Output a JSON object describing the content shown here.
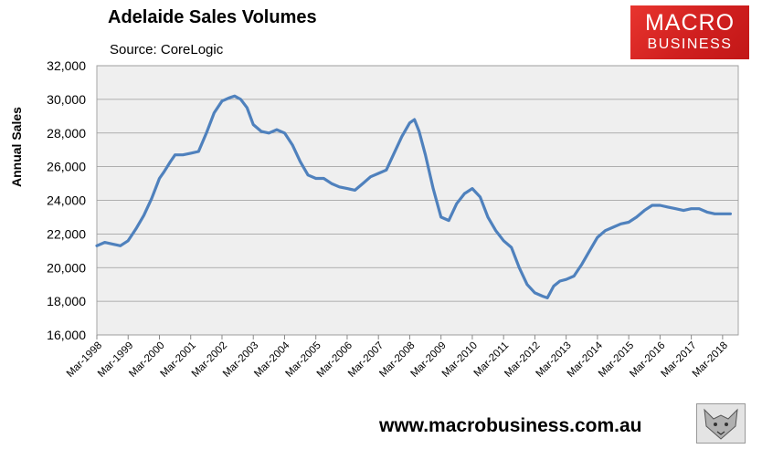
{
  "header": {
    "title": "Adelaide Sales Volumes",
    "source": "Source: CoreLogic"
  },
  "logo": {
    "line1": "MACRO",
    "line2": "BUSINESS",
    "color": "#d9261f"
  },
  "footer": {
    "url": "www.macrobusiness.com.au",
    "logo_icon": "wolf-icon"
  },
  "chart_data": {
    "type": "line",
    "title": "Adelaide Sales Volumes",
    "subtitle": "Source: CoreLogic",
    "xlabel": "",
    "ylabel": "Annual Sales",
    "ylim": [
      16000,
      32000
    ],
    "yticks": [
      16000,
      18000,
      20000,
      22000,
      24000,
      26000,
      28000,
      30000,
      32000
    ],
    "xlim": [
      1998.0,
      2018.5
    ],
    "xtick_labels": [
      "Mar-1998",
      "Mar-1999",
      "Mar-2000",
      "Mar-2001",
      "Mar-2002",
      "Mar-2003",
      "Mar-2004",
      "Mar-2005",
      "Mar-2006",
      "Mar-2007",
      "Mar-2008",
      "Mar-2009",
      "Mar-2010",
      "Mar-2011",
      "Mar-2012",
      "Mar-2013",
      "Mar-2014",
      "Mar-2015",
      "Mar-2016",
      "Mar-2017",
      "Mar-2018"
    ],
    "grid": true,
    "legend": "none",
    "plot_background": "#efefef",
    "line_color": "#4f81bd",
    "series": [
      {
        "x": [
          1998.0,
          1998.25,
          1998.5,
          1998.75,
          1999.0,
          1999.25,
          1999.5,
          1999.75,
          2000.0,
          2000.15,
          2000.35,
          2000.5,
          2000.75,
          2001.0,
          2001.25,
          2001.5,
          2001.75,
          2002.0,
          2002.25,
          2002.4,
          2002.6,
          2002.8,
          2003.0,
          2003.25,
          2003.5,
          2003.75,
          2004.0,
          2004.25,
          2004.5,
          2004.75,
          2005.0,
          2005.25,
          2005.5,
          2005.75,
          2006.0,
          2006.25,
          2006.5,
          2006.75,
          2007.0,
          2007.25,
          2007.5,
          2007.75,
          2008.0,
          2008.15,
          2008.3,
          2008.5,
          2008.75,
          2009.0,
          2009.25,
          2009.5,
          2009.75,
          2010.0,
          2010.25,
          2010.5,
          2010.75,
          2011.0,
          2011.25,
          2011.5,
          2011.75,
          2012.0,
          2012.25,
          2012.4,
          2012.6,
          2012.8,
          2013.0,
          2013.25,
          2013.5,
          2013.75,
          2014.0,
          2014.25,
          2014.5,
          2014.75,
          2015.0,
          2015.25,
          2015.5,
          2015.75,
          2016.0,
          2016.25,
          2016.5,
          2016.75,
          2017.0,
          2017.25,
          2017.5,
          2017.75,
          2018.0,
          2018.25
        ],
        "y": [
          21300,
          21500,
          21400,
          21300,
          21600,
          22300,
          23100,
          24100,
          25300,
          25700,
          26300,
          26700,
          26700,
          26800,
          26900,
          28000,
          29200,
          29900,
          30100,
          30200,
          30000,
          29500,
          28500,
          28100,
          28000,
          28200,
          28000,
          27300,
          26300,
          25500,
          25300,
          25300,
          25000,
          24800,
          24700,
          24600,
          25000,
          25400,
          25600,
          25800,
          26800,
          27800,
          28600,
          28800,
          28100,
          26700,
          24700,
          23000,
          22800,
          23800,
          24400,
          24700,
          24200,
          23000,
          22200,
          21600,
          21200,
          20000,
          19000,
          18500,
          18300,
          18200,
          18900,
          19200,
          19300,
          19500,
          20200,
          21000,
          21800,
          22200,
          22400,
          22600,
          22700,
          23000,
          23400,
          23700,
          23700,
          23600,
          23500,
          23400,
          23500,
          23500,
          23300,
          23200,
          23200,
          23200
        ]
      }
    ]
  }
}
